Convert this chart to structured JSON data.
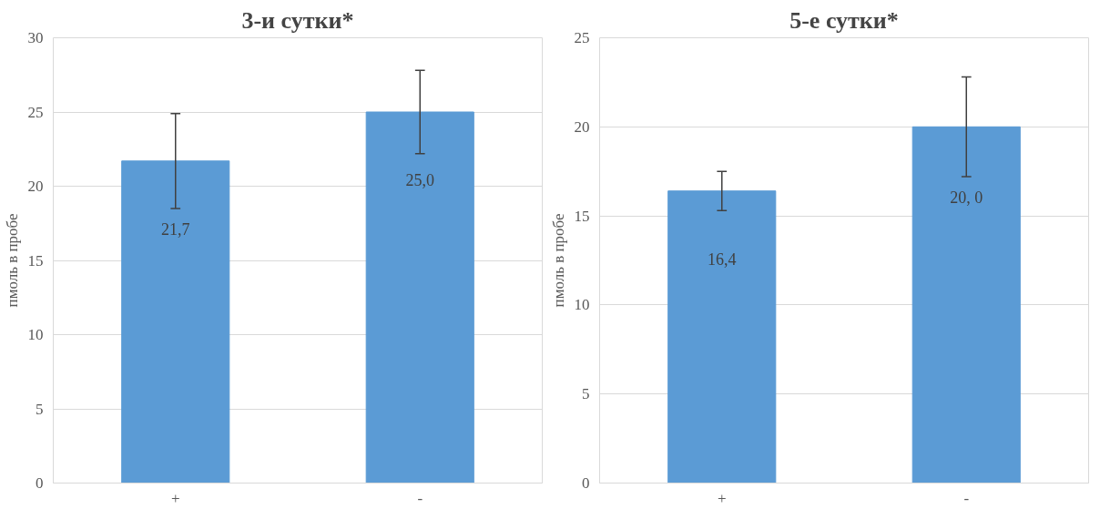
{
  "chart_data": [
    {
      "type": "bar",
      "title": "3-и сутки*",
      "ylabel": "пмоль в пробе",
      "categories": [
        "+",
        "-"
      ],
      "values": [
        21.7,
        25.0
      ],
      "color": "#5b9bd5",
      "errors": [
        3.2,
        2.8
      ],
      "value_labels": [
        "21,7",
        "25,0"
      ],
      "ylim": [
        0,
        30
      ],
      "yticks": [
        0,
        5,
        10,
        15,
        20,
        25,
        30
      ],
      "grid": "y"
    },
    {
      "type": "bar",
      "title": "5-е сутки*",
      "ylabel": "пмоль в пробе",
      "categories": [
        "+",
        "-"
      ],
      "values": [
        16.4,
        20.0
      ],
      "color": "#5b9bd5",
      "errors": [
        1.1,
        2.8
      ],
      "value_labels": [
        "16,4",
        "20, 0"
      ],
      "ylim": [
        0,
        25
      ],
      "yticks": [
        0,
        5,
        10,
        15,
        20,
        25
      ],
      "grid": "y"
    }
  ]
}
